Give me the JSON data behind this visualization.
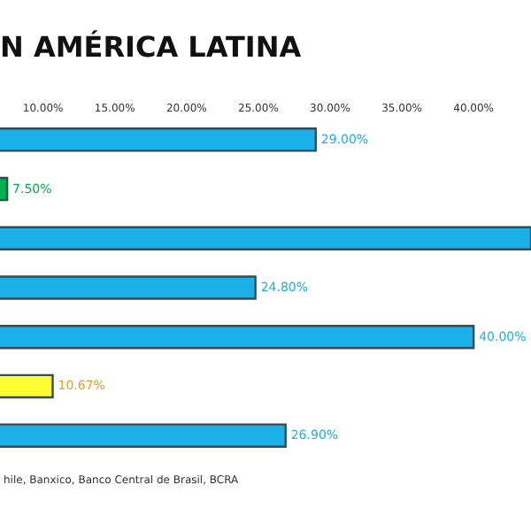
{
  "chart_data": {
    "type": "bar",
    "orientation": "horizontal",
    "title": "N AMÉRICA LATINA",
    "categories": [
      null,
      null,
      null,
      null,
      null,
      null,
      null
    ],
    "values": [
      29.0,
      7.5,
      44.0,
      24.8,
      40.0,
      10.67,
      26.9
    ],
    "colors": [
      "#1cb0e8",
      "#00b050",
      "#1cb0e8",
      "#1cb0e8",
      "#1cb0e8",
      "#ffff33",
      "#1cb0e8"
    ],
    "value_labels": [
      "29.00%",
      "7.50%",
      null,
      "24.80%",
      "40.00%",
      "10.67%",
      "26.90%"
    ],
    "xlim": [
      7,
      44
    ],
    "xticks": [
      {
        "value": 10,
        "label": "10.00%"
      },
      {
        "value": 15,
        "label": "15.00%"
      },
      {
        "value": 20,
        "label": "20.00%"
      },
      {
        "value": 25,
        "label": "25.00%"
      },
      {
        "value": 30,
        "label": "30.00%"
      },
      {
        "value": 35,
        "label": "35.00%"
      },
      {
        "value": 40,
        "label": "40.00%"
      }
    ],
    "annotations": [
      "hile, Banxico, Banco Central de Brasil, BCRA"
    ]
  }
}
